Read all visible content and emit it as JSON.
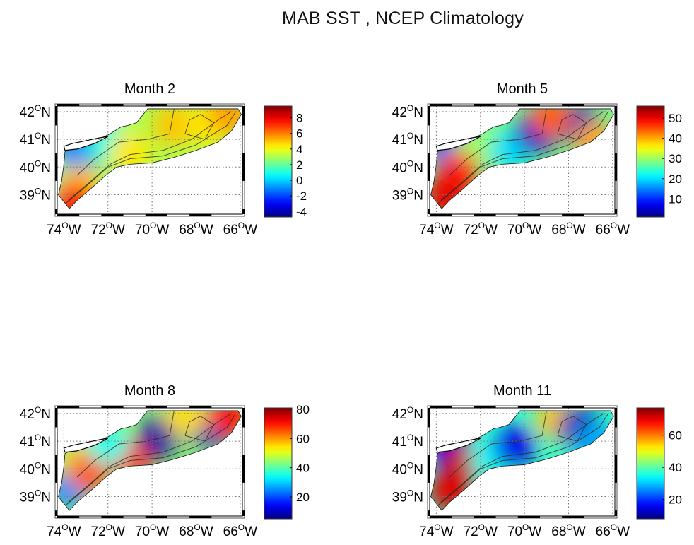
{
  "figure": {
    "suptitle": "MAB SST , NCEP Climatology"
  },
  "chart_data": [
    {
      "type": "heatmap",
      "title": "Month 2",
      "xlabel": "",
      "ylabel": "",
      "xlim": [
        -74.3,
        -65.9
      ],
      "ylim": [
        38.3,
        42.2
      ],
      "xticks": [
        -74,
        -72,
        -70,
        -68,
        -66
      ],
      "xticklabels": [
        "74",
        "72",
        "70",
        "68",
        "66"
      ],
      "x_suffix": "W",
      "yticks": [
        39,
        40,
        41,
        42
      ],
      "yticklabels": [
        "39",
        "40",
        "41",
        "42"
      ],
      "y_suffix": "N",
      "grid": true,
      "colormap": "jet",
      "clim": [
        -4.7,
        9.5
      ],
      "colorbar_ticks": [
        -4,
        -2,
        0,
        2,
        4,
        6,
        8
      ],
      "colorbar_ticklabels": [
        "-4",
        "-2",
        "0",
        "2",
        "4",
        "6",
        "8"
      ],
      "field_samples": [
        {
          "lon": -73.5,
          "lat": 40.9,
          "value": -3.5
        },
        {
          "lon": -73.4,
          "lat": 40.5,
          "value": -1
        },
        {
          "lon": -72.0,
          "lat": 40.9,
          "value": 1
        },
        {
          "lon": -73.8,
          "lat": 39.3,
          "value": 2
        },
        {
          "lon": -73.3,
          "lat": 39.3,
          "value": 5
        },
        {
          "lon": -73.6,
          "lat": 38.7,
          "value": 7.5
        },
        {
          "lon": -71.0,
          "lat": 40.5,
          "value": 4.5
        },
        {
          "lon": -69.0,
          "lat": 41.5,
          "value": 5
        },
        {
          "lon": -67.5,
          "lat": 41.5,
          "value": 4.5
        },
        {
          "lon": -66.5,
          "lat": 41.9,
          "value": 5.5
        }
      ]
    },
    {
      "type": "heatmap",
      "title": "Month 5",
      "xlim": [
        -74.3,
        -65.9
      ],
      "ylim": [
        38.3,
        42.2
      ],
      "xticks": [
        -74,
        -72,
        -70,
        -68,
        -66
      ],
      "xticklabels": [
        "74",
        "72",
        "70",
        "68",
        "66"
      ],
      "x_suffix": "W",
      "yticks": [
        39,
        40,
        41,
        42
      ],
      "yticklabels": [
        "39",
        "40",
        "41",
        "42"
      ],
      "y_suffix": "N",
      "grid": true,
      "colormap": "jet",
      "clim": [
        1,
        56
      ],
      "colorbar_ticks": [
        10,
        20,
        30,
        40,
        50
      ],
      "colorbar_ticklabels": [
        "10",
        "20",
        "30",
        "40",
        "50"
      ],
      "field_samples": [
        {
          "lon": -73.5,
          "lat": 40.9,
          "value": 12
        },
        {
          "lon": -72.3,
          "lat": 40.7,
          "value": 30
        },
        {
          "lon": -73.0,
          "lat": 39.8,
          "value": 48
        },
        {
          "lon": -73.6,
          "lat": 38.9,
          "value": 50
        },
        {
          "lon": -70.6,
          "lat": 40.6,
          "value": 20
        },
        {
          "lon": -69.5,
          "lat": 41.2,
          "value": 5
        },
        {
          "lon": -67.5,
          "lat": 41.5,
          "value": 4
        },
        {
          "lon": -68.8,
          "lat": 41.8,
          "value": 44
        },
        {
          "lon": -66.8,
          "lat": 40.9,
          "value": 40
        }
      ]
    },
    {
      "type": "heatmap",
      "title": "Month 8",
      "xlim": [
        -74.3,
        -65.9
      ],
      "ylim": [
        38.3,
        42.2
      ],
      "xticks": [
        -74,
        -72,
        -70,
        -68,
        -66
      ],
      "xticklabels": [
        "74",
        "72",
        "70",
        "68",
        "66"
      ],
      "x_suffix": "W",
      "yticks": [
        39,
        40,
        41,
        42
      ],
      "yticklabels": [
        "39",
        "40",
        "41",
        "42"
      ],
      "y_suffix": "N",
      "grid": true,
      "colormap": "jet",
      "clim": [
        5,
        81
      ],
      "colorbar_ticks": [
        20,
        40,
        60,
        80
      ],
      "colorbar_ticklabels": [
        "20",
        "40",
        "60",
        "80"
      ],
      "field_samples": [
        {
          "lon": -73.8,
          "lat": 39.3,
          "value": 25
        },
        {
          "lon": -73.2,
          "lat": 40.2,
          "value": 55
        },
        {
          "lon": -72.8,
          "lat": 39.9,
          "value": 65
        },
        {
          "lon": -71.0,
          "lat": 40.4,
          "value": 70
        },
        {
          "lon": -72.0,
          "lat": 40.9,
          "value": 35
        },
        {
          "lon": -69.6,
          "lat": 41.2,
          "value": 8
        },
        {
          "lon": -67.5,
          "lat": 41.5,
          "value": 10
        },
        {
          "lon": -68.5,
          "lat": 41.9,
          "value": 55
        },
        {
          "lon": -66.5,
          "lat": 41.9,
          "value": 70
        }
      ]
    },
    {
      "type": "heatmap",
      "title": "Month 11",
      "xlim": [
        -74.3,
        -65.9
      ],
      "ylim": [
        38.3,
        42.2
      ],
      "xticks": [
        -74,
        -72,
        -70,
        -68,
        -66
      ],
      "xticklabels": [
        "74",
        "72",
        "70",
        "68",
        "66"
      ],
      "x_suffix": "W",
      "yticks": [
        39,
        40,
        41,
        42
      ],
      "yticklabels": [
        "39",
        "40",
        "41",
        "42"
      ],
      "y_suffix": "N",
      "grid": true,
      "colormap": "jet",
      "clim": [
        8,
        77
      ],
      "colorbar_ticks": [
        20,
        40,
        60
      ],
      "colorbar_ticklabels": [
        "20",
        "40",
        "60"
      ],
      "field_samples": [
        {
          "lon": -73.5,
          "lat": 40.9,
          "value": 15
        },
        {
          "lon": -73.4,
          "lat": 39.2,
          "value": 70
        },
        {
          "lon": -72.8,
          "lat": 40.2,
          "value": 72
        },
        {
          "lon": -71.5,
          "lat": 40.4,
          "value": 35
        },
        {
          "lon": -70.5,
          "lat": 40.8,
          "value": 15
        },
        {
          "lon": -68.6,
          "lat": 41.8,
          "value": 55
        },
        {
          "lon": -67.5,
          "lat": 41.5,
          "value": 12
        },
        {
          "lon": -66.8,
          "lat": 40.9,
          "value": 28
        }
      ]
    }
  ]
}
